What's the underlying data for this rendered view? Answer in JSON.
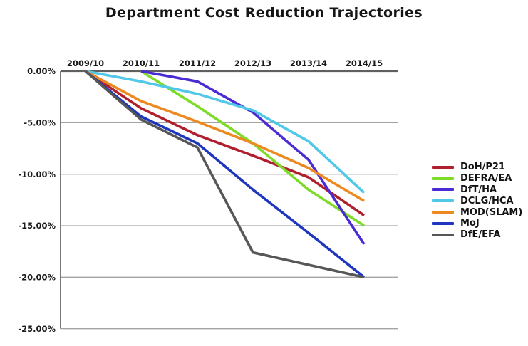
{
  "page": {
    "title": "Department Cost Reduction Trajectories"
  },
  "chart_data": {
    "type": "line",
    "title": "Department Cost Reduction Trajectories",
    "x_categories": [
      "2009/10",
      "2010/11",
      "2011/12",
      "2012/13",
      "2013/14",
      "2014/15"
    ],
    "y_tick_labels": [
      "0.00%",
      "-5.00%",
      "-10.00%",
      "-15.00%",
      "-20.00%",
      "-25.00%"
    ],
    "y_tick_values": [
      0,
      -5,
      -10,
      -15,
      -20,
      -25
    ],
    "ylim": [
      -25,
      0
    ],
    "unit": "percent",
    "grid": true,
    "legend_position": "right",
    "series": [
      {
        "name": "DoH/P21",
        "color": "#b01f2e",
        "values": [
          0,
          -3.6,
          -6.2,
          -8.2,
          -10.3,
          -14.0
        ]
      },
      {
        "name": "DEFRA/EA",
        "color": "#7edb29",
        "values": [
          null,
          0,
          -3.4,
          -7.0,
          -11.5,
          -15.0
        ]
      },
      {
        "name": "DfT/HA",
        "color": "#4a2bd4",
        "values": [
          null,
          0,
          -1.0,
          -4.0,
          -8.6,
          -16.8
        ]
      },
      {
        "name": "DCLG/HCA",
        "color": "#52c8e8",
        "values": [
          0,
          -1.0,
          -2.2,
          -3.8,
          -6.8,
          -11.8
        ]
      },
      {
        "name": "MOD(SLAM)",
        "color": "#ec8a21",
        "values": [
          0,
          -2.9,
          -4.9,
          -7.0,
          -9.4,
          -12.6
        ]
      },
      {
        "name": "MoJ",
        "color": "#1e36bd",
        "values": [
          0,
          -4.4,
          -7.0,
          -11.5,
          -15.7,
          -20.0
        ]
      },
      {
        "name": "DfE/EFA",
        "color": "#575757",
        "values": [
          0,
          -4.7,
          -7.4,
          -17.6,
          -18.8,
          -20.0
        ]
      }
    ],
    "axis_colors": {
      "gridline": "#a3a3a3",
      "zero_line": "#5f5f5f",
      "y_axis": "#7a7a7a",
      "tick_text": "#1a1a1a"
    }
  }
}
